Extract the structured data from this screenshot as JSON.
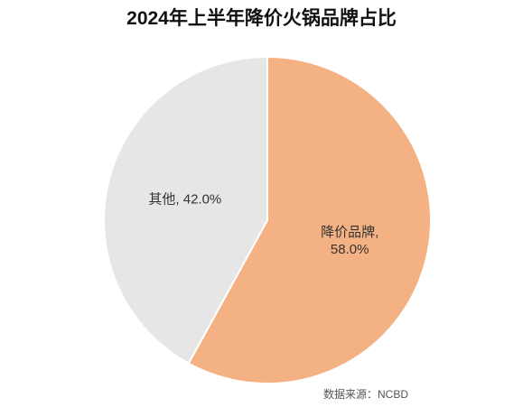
{
  "chart_data": {
    "type": "pie",
    "title": "2024年上半年降价火锅品牌占比",
    "labels": [
      "降价品牌, 58.0%",
      "其他, 42.0%"
    ],
    "values": [
      58.0,
      42.0
    ],
    "colors": [
      "#f4b183",
      "#e6e6e6"
    ],
    "source": "数据来源：NCBD"
  }
}
